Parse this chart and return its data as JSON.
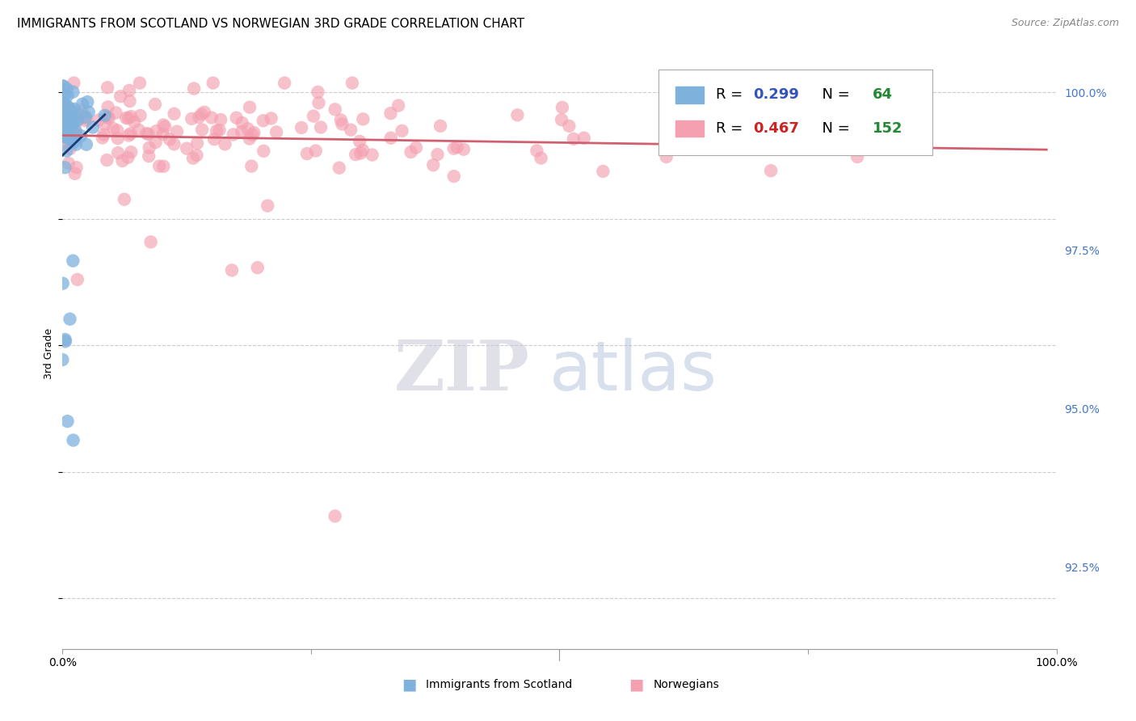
{
  "title": "IMMIGRANTS FROM SCOTLAND VS NORWEGIAN 3RD GRADE CORRELATION CHART",
  "source": "Source: ZipAtlas.com",
  "ylabel": "3rd Grade",
  "ylabel_right_ticks": [
    92.5,
    95.0,
    97.5,
    100.0
  ],
  "ylabel_right_labels": [
    "92.5%",
    "95.0%",
    "97.5%",
    "100.0%"
  ],
  "xmin": 0.0,
  "xmax": 100.0,
  "ymin": 91.2,
  "ymax": 100.55,
  "scotland_R": 0.299,
  "scotland_N": 64,
  "norwegian_R": 0.467,
  "norwegian_N": 152,
  "scotland_color": "#7EB2DD",
  "norwegian_color": "#F4A0B0",
  "scotland_line_color": "#1A3A7A",
  "norwegian_line_color": "#D06070",
  "background_color": "#ffffff",
  "grid_color": "#cccccc",
  "watermark_zip": "ZIP",
  "watermark_atlas": "atlas",
  "legend_label_scotland": "Immigrants from Scotland",
  "legend_label_norwegian": "Norwegians",
  "title_fontsize": 11,
  "source_fontsize": 9,
  "legend_fontsize": 13
}
